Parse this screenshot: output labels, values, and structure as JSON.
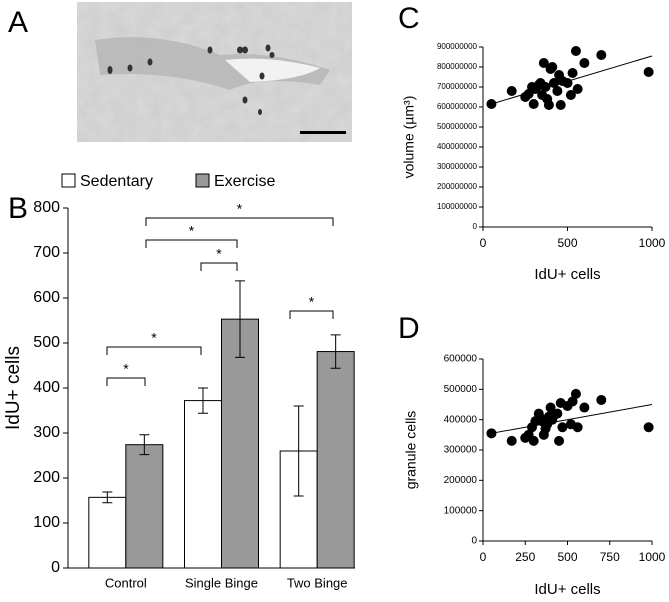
{
  "image_panel": {
    "label": "A"
  },
  "chart_data": [
    {
      "type": "bar",
      "panel_label": "B",
      "y_label": "IdU+ cells",
      "categories": [
        "Control",
        "Single Binge",
        "Two Binge"
      ],
      "series": [
        {
          "name": "Sedentary",
          "color": "#ffffff",
          "values": [
            157,
            372,
            260
          ],
          "errors": [
            12,
            28,
            100
          ]
        },
        {
          "name": "Exercise",
          "color": "#999999",
          "values": [
            274,
            553,
            481
          ],
          "errors": [
            22,
            85,
            37
          ]
        }
      ],
      "ylim": [
        0,
        800
      ],
      "yticks": [
        0,
        100,
        200,
        300,
        400,
        500,
        600,
        700,
        800
      ],
      "annotations": [
        {
          "text": "*"
        },
        {
          "text": "*"
        },
        {
          "text": "*"
        },
        {
          "text": "*"
        },
        {
          "text": "*"
        },
        {
          "text": "*"
        }
      ]
    },
    {
      "type": "scatter",
      "panel_label": "C",
      "x_label": "IdU+ cells",
      "y_label": "volume (µm³)",
      "color": "#000000",
      "x": [
        50,
        170,
        250,
        270,
        290,
        300,
        310,
        330,
        350,
        360,
        370,
        380,
        390,
        400,
        420,
        440,
        450,
        460,
        470,
        500,
        520,
        530,
        550,
        560,
        600,
        700,
        980,
        410,
        340
      ],
      "values": [
        615000000,
        680000000,
        650000000,
        665000000,
        700000000,
        615000000,
        690000000,
        710000000,
        660000000,
        820000000,
        700000000,
        640000000,
        610000000,
        790000000,
        720000000,
        680000000,
        760000000,
        610000000,
        730000000,
        720000000,
        660000000,
        770000000,
        880000000,
        690000000,
        820000000,
        860000000,
        775000000,
        800000000,
        720000000
      ],
      "trendline": {
        "x": [
          50,
          1000
        ],
        "y": [
          615000000,
          855000000
        ]
      },
      "xlim": [
        0,
        1000
      ],
      "xticks": [
        0,
        500,
        1000
      ],
      "ylim": [
        0,
        900000000
      ],
      "yticks": [
        0,
        100000000,
        200000000,
        300000000,
        400000000,
        500000000,
        600000000,
        700000000,
        800000000,
        900000000
      ]
    },
    {
      "type": "scatter",
      "panel_label": "D",
      "x_label": "IdU+ cells",
      "y_label": "granule cells",
      "color": "#000000",
      "x": [
        50,
        170,
        250,
        270,
        290,
        300,
        310,
        330,
        350,
        360,
        370,
        380,
        390,
        400,
        420,
        440,
        450,
        460,
        470,
        500,
        520,
        530,
        550,
        560,
        600,
        700,
        980,
        410,
        340
      ],
      "values": [
        355000,
        330000,
        340000,
        350000,
        375000,
        330000,
        395000,
        420000,
        395000,
        350000,
        370000,
        385000,
        410000,
        440000,
        415000,
        420000,
        330000,
        455000,
        375000,
        445000,
        385000,
        460000,
        485000,
        375000,
        440000,
        465000,
        375000,
        400000,
        405000
      ],
      "trendline": {
        "x": [
          50,
          1000
        ],
        "y": [
          355000,
          450000
        ]
      },
      "xlim": [
        0,
        1000
      ],
      "xticks": [
        0,
        250,
        500,
        750,
        1000
      ],
      "ylim": [
        0,
        600000
      ],
      "yticks": [
        0,
        100000,
        200000,
        300000,
        400000,
        500000,
        600000
      ]
    }
  ]
}
